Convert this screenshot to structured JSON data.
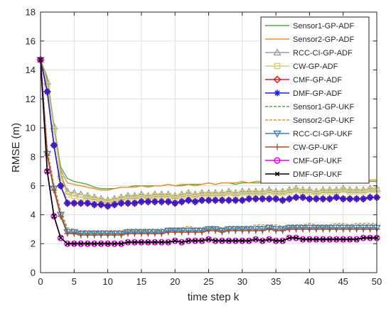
{
  "chart_data": {
    "type": "line",
    "title": "",
    "xlabel": "time step k",
    "ylabel": "RMSE (m)",
    "xlim": [
      0,
      50
    ],
    "ylim": [
      0,
      18
    ],
    "xticks": [
      0,
      5,
      10,
      15,
      20,
      25,
      30,
      35,
      40,
      45,
      50
    ],
    "yticks": [
      0,
      2,
      4,
      6,
      8,
      10,
      12,
      14,
      16,
      18
    ],
    "grid": true,
    "legend_position": "top-right",
    "x": [
      0,
      1,
      2,
      3,
      4,
      5,
      6,
      7,
      8,
      9,
      10,
      11,
      12,
      13,
      14,
      15,
      16,
      17,
      18,
      19,
      20,
      21,
      22,
      23,
      24,
      25,
      26,
      27,
      28,
      29,
      30,
      31,
      32,
      33,
      34,
      35,
      36,
      37,
      38,
      39,
      40,
      41,
      42,
      43,
      44,
      45,
      46,
      47,
      48,
      49,
      50
    ],
    "series": [
      {
        "name": "Sensor1-GP-ADF",
        "color": "#4daf4a",
        "dash": "",
        "marker": "none",
        "values": [
          14.7,
          13.5,
          10.2,
          7.3,
          6.5,
          6.3,
          6.2,
          6.1,
          5.9,
          5.8,
          5.8,
          5.8,
          5.9,
          5.9,
          6.0,
          6.0,
          6.0,
          6.0,
          6.0,
          6.1,
          6.0,
          6.0,
          6.1,
          6.1,
          6.1,
          6.2,
          6.1,
          6.2,
          6.2,
          6.1,
          6.2,
          6.2,
          6.2,
          6.2,
          6.3,
          6.2,
          6.2,
          6.3,
          6.4,
          6.3,
          6.3,
          6.2,
          6.3,
          6.3,
          6.4,
          6.3,
          6.3,
          6.3,
          6.2,
          6.3,
          6.3
        ]
      },
      {
        "name": "Sensor2-GP-ADF",
        "color": "#f28e2b",
        "dash": "",
        "marker": "none",
        "values": [
          14.8,
          13.3,
          10.0,
          7.1,
          6.2,
          6.1,
          6.0,
          5.9,
          5.8,
          5.7,
          5.7,
          5.8,
          5.9,
          5.9,
          5.9,
          6.0,
          5.9,
          6.0,
          6.0,
          6.1,
          6.0,
          6.1,
          6.1,
          6.0,
          6.1,
          6.2,
          6.1,
          6.2,
          6.2,
          6.2,
          6.3,
          6.2,
          6.3,
          6.3,
          6.3,
          6.2,
          6.3,
          6.3,
          6.3,
          6.3,
          6.4,
          6.3,
          6.4,
          6.3,
          6.4,
          6.5,
          6.4,
          6.4,
          6.3,
          6.4,
          6.4
        ]
      },
      {
        "name": "RCC-CI-GP-ADF",
        "color": "#9e9e9e",
        "dash": "",
        "marker": "triangle",
        "values": [
          14.7,
          13.2,
          10.1,
          6.8,
          5.6,
          5.5,
          5.4,
          5.3,
          5.2,
          5.1,
          5.0,
          5.1,
          5.2,
          5.3,
          5.3,
          5.4,
          5.3,
          5.4,
          5.4,
          5.4,
          5.3,
          5.4,
          5.5,
          5.4,
          5.5,
          5.5,
          5.5,
          5.5,
          5.6,
          5.5,
          5.6,
          5.6,
          5.6,
          5.6,
          5.7,
          5.6,
          5.6,
          5.7,
          5.8,
          5.7,
          5.7,
          5.6,
          5.7,
          5.7,
          5.7,
          5.8,
          5.7,
          5.7,
          5.7,
          5.8,
          5.8
        ]
      },
      {
        "name": "CW-GP-ADF",
        "color": "#d4cf72",
        "dash": "",
        "marker": "square",
        "values": [
          14.7,
          13.0,
          9.9,
          6.6,
          5.4,
          5.3,
          5.2,
          5.2,
          5.1,
          5.0,
          4.9,
          5.0,
          5.1,
          5.2,
          5.2,
          5.3,
          5.2,
          5.3,
          5.3,
          5.3,
          5.2,
          5.3,
          5.4,
          5.3,
          5.4,
          5.4,
          5.4,
          5.4,
          5.5,
          5.4,
          5.5,
          5.5,
          5.5,
          5.5,
          5.6,
          5.5,
          5.5,
          5.6,
          5.7,
          5.6,
          5.6,
          5.5,
          5.6,
          5.6,
          5.6,
          5.7,
          5.6,
          5.6,
          5.6,
          5.7,
          5.7
        ]
      },
      {
        "name": "CMF-GP-ADF",
        "color": "#e41a1c",
        "dash": "",
        "marker": "diamond",
        "values": [
          14.7,
          12.5,
          8.8,
          6.0,
          4.8,
          4.8,
          4.8,
          4.8,
          4.7,
          4.7,
          4.6,
          4.7,
          4.8,
          4.8,
          4.8,
          4.9,
          4.9,
          4.9,
          4.9,
          4.9,
          4.8,
          4.9,
          5.0,
          4.9,
          5.0,
          5.0,
          5.0,
          5.0,
          5.0,
          5.0,
          5.0,
          5.1,
          5.1,
          5.1,
          5.1,
          5.1,
          5.0,
          5.1,
          5.2,
          5.2,
          5.1,
          5.1,
          5.1,
          5.1,
          5.2,
          5.1,
          5.1,
          5.1,
          5.1,
          5.2,
          5.2
        ]
      },
      {
        "name": "DMF-GP-ADF",
        "color": "#1f1fe0",
        "dash": "",
        "marker": "star",
        "values": [
          14.7,
          12.5,
          8.8,
          6.0,
          4.8,
          4.8,
          4.8,
          4.8,
          4.7,
          4.7,
          4.6,
          4.7,
          4.8,
          4.8,
          4.8,
          4.9,
          4.9,
          4.9,
          4.9,
          4.9,
          4.8,
          4.9,
          5.0,
          4.9,
          5.0,
          5.0,
          5.0,
          5.0,
          5.0,
          5.0,
          5.0,
          5.1,
          5.1,
          5.1,
          5.1,
          5.1,
          5.0,
          5.1,
          5.2,
          5.2,
          5.1,
          5.1,
          5.1,
          5.1,
          5.2,
          5.1,
          5.1,
          5.1,
          5.1,
          5.2,
          5.2
        ]
      },
      {
        "name": "Sensor1-GP-UKF",
        "color": "#4daf4a",
        "dash": "4,2",
        "marker": "none",
        "values": [
          14.7,
          8.5,
          6.0,
          4.2,
          3.0,
          2.9,
          2.8,
          2.8,
          2.8,
          2.8,
          2.8,
          2.8,
          2.8,
          2.9,
          2.9,
          2.9,
          2.9,
          2.9,
          2.9,
          3.0,
          3.0,
          3.0,
          3.1,
          3.0,
          3.0,
          3.1,
          3.1,
          3.0,
          3.1,
          3.1,
          3.1,
          3.1,
          3.2,
          3.2,
          3.2,
          3.2,
          3.1,
          3.2,
          3.2,
          3.2,
          3.3,
          3.2,
          3.2,
          3.2,
          3.3,
          3.3,
          3.2,
          3.3,
          3.3,
          3.3,
          3.3
        ]
      },
      {
        "name": "Sensor2-GP-UKF",
        "color": "#f28e2b",
        "dash": "4,2",
        "marker": "none",
        "values": [
          14.7,
          8.6,
          6.1,
          4.3,
          3.1,
          3.0,
          2.9,
          2.9,
          2.9,
          2.9,
          2.9,
          2.9,
          2.9,
          3.0,
          3.0,
          3.0,
          3.0,
          3.0,
          3.0,
          3.1,
          3.1,
          3.1,
          3.2,
          3.1,
          3.1,
          3.2,
          3.2,
          3.1,
          3.2,
          3.2,
          3.2,
          3.2,
          3.3,
          3.3,
          3.3,
          3.3,
          3.2,
          3.3,
          3.3,
          3.3,
          3.4,
          3.3,
          3.3,
          3.3,
          3.4,
          3.4,
          3.3,
          3.4,
          3.4,
          3.4,
          3.4
        ]
      },
      {
        "name": "RCC-CI-GP-UKF",
        "color": "#3f7fbf",
        "dash": "",
        "marker": "triangle-down",
        "values": [
          14.7,
          8.2,
          5.8,
          4.0,
          2.8,
          2.8,
          2.7,
          2.7,
          2.7,
          2.7,
          2.7,
          2.7,
          2.7,
          2.8,
          2.8,
          2.8,
          2.8,
          2.8,
          2.8,
          2.9,
          2.9,
          2.9,
          2.9,
          2.9,
          2.9,
          3.0,
          3.0,
          2.9,
          3.0,
          3.0,
          3.0,
          3.0,
          3.0,
          3.0,
          3.1,
          3.0,
          3.0,
          3.1,
          3.1,
          3.1,
          3.1,
          3.1,
          3.1,
          3.1,
          3.1,
          3.1,
          3.1,
          3.1,
          3.1,
          3.1,
          3.1
        ]
      },
      {
        "name": "CW-GP-UKF",
        "color": "#a0522d",
        "dash": "",
        "marker": "plus",
        "values": [
          14.7,
          8.1,
          5.7,
          3.9,
          2.7,
          2.7,
          2.6,
          2.6,
          2.6,
          2.6,
          2.6,
          2.6,
          2.6,
          2.7,
          2.7,
          2.7,
          2.7,
          2.7,
          2.7,
          2.8,
          2.8,
          2.8,
          2.8,
          2.8,
          2.8,
          2.9,
          2.9,
          2.8,
          2.9,
          2.9,
          2.9,
          2.9,
          2.9,
          2.9,
          3.0,
          2.9,
          2.9,
          3.0,
          3.0,
          3.0,
          3.0,
          3.0,
          3.0,
          3.0,
          3.0,
          3.0,
          3.0,
          3.0,
          3.0,
          3.0,
          3.0
        ]
      },
      {
        "name": "CMF-GP-UKF",
        "color": "#ee00ee",
        "dash": "",
        "marker": "circle",
        "values": [
          14.7,
          7.0,
          3.9,
          2.4,
          2.0,
          2.0,
          2.0,
          2.0,
          2.0,
          2.0,
          2.0,
          2.0,
          2.0,
          2.1,
          2.1,
          2.1,
          2.1,
          2.1,
          2.1,
          2.1,
          2.2,
          2.1,
          2.2,
          2.2,
          2.2,
          2.3,
          2.2,
          2.2,
          2.2,
          2.2,
          2.2,
          2.2,
          2.3,
          2.2,
          2.3,
          2.2,
          2.2,
          2.4,
          2.4,
          2.3,
          2.3,
          2.3,
          2.3,
          2.3,
          2.3,
          2.3,
          2.3,
          2.3,
          2.4,
          2.4,
          2.4
        ]
      },
      {
        "name": "DMF-GP-UKF",
        "color": "#000000",
        "dash": "",
        "marker": "x",
        "values": [
          14.7,
          7.0,
          3.9,
          2.4,
          2.0,
          2.0,
          2.0,
          2.0,
          2.0,
          2.0,
          2.0,
          2.0,
          2.0,
          2.1,
          2.1,
          2.1,
          2.1,
          2.1,
          2.1,
          2.1,
          2.2,
          2.1,
          2.2,
          2.2,
          2.2,
          2.3,
          2.2,
          2.2,
          2.2,
          2.2,
          2.2,
          2.2,
          2.3,
          2.2,
          2.3,
          2.2,
          2.2,
          2.4,
          2.4,
          2.3,
          2.3,
          2.3,
          2.3,
          2.3,
          2.3,
          2.3,
          2.3,
          2.3,
          2.4,
          2.4,
          2.4
        ]
      }
    ]
  }
}
